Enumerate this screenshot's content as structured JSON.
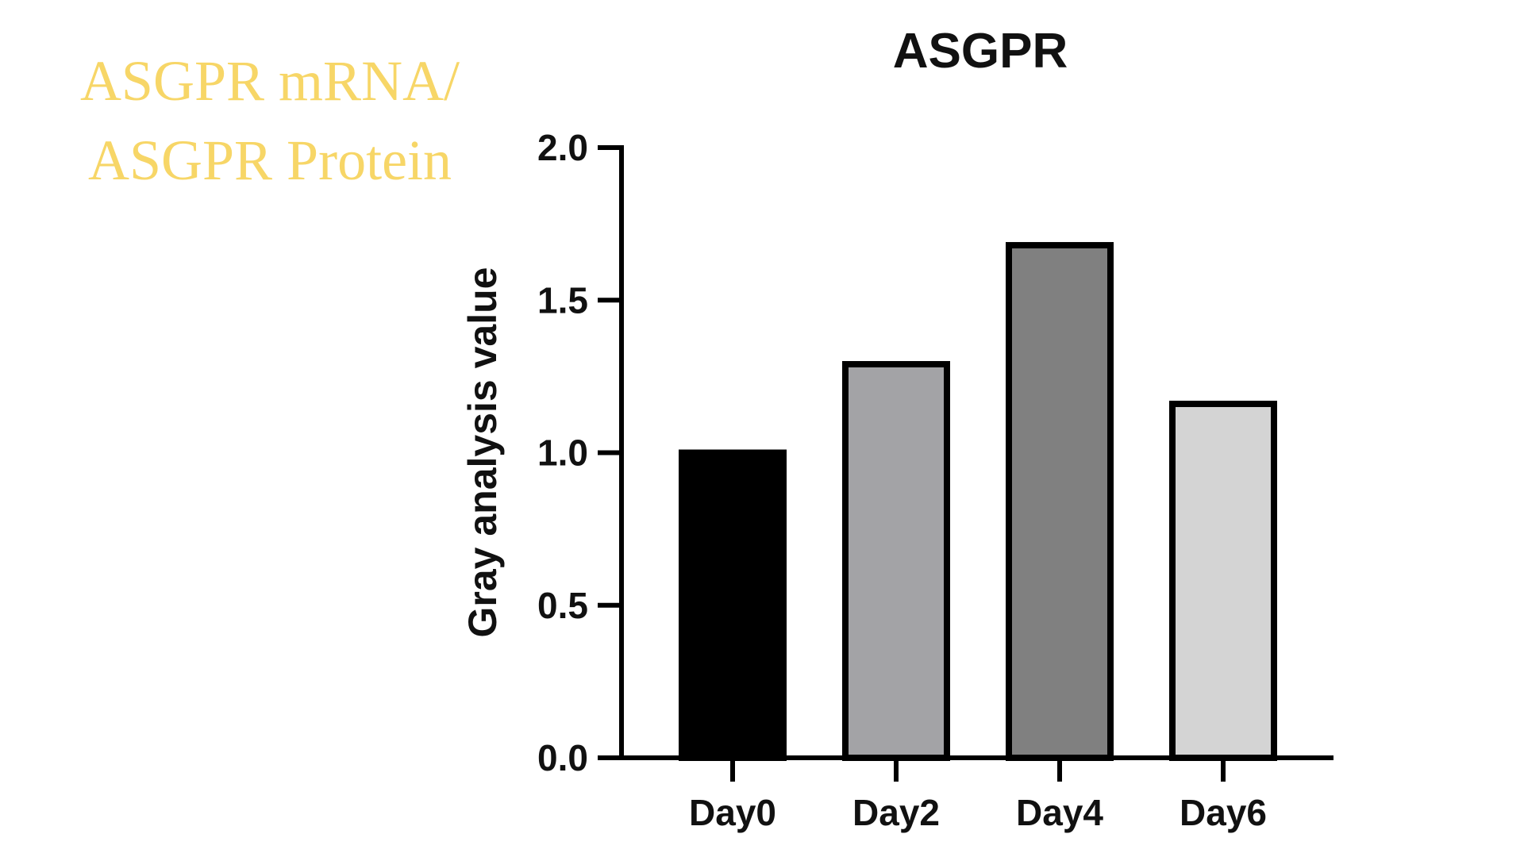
{
  "side_note": {
    "line1": "ASGPR mRNA/",
    "line2": "ASGPR Protein",
    "color": "#f7d667"
  },
  "chart_data": {
    "type": "bar",
    "title": "ASGPR",
    "xlabel": "",
    "ylabel": "Gray analysis value",
    "categories": [
      "Day0",
      "Day2",
      "Day4",
      "Day6"
    ],
    "values": [
      1.0,
      1.29,
      1.68,
      1.16
    ],
    "bar_colors": [
      "#000000",
      "#a3a3a6",
      "#808080",
      "#d4d4d4"
    ],
    "bar_outline": "#000000",
    "ylim": [
      0,
      2.0
    ],
    "yticks": [
      0.0,
      0.5,
      1.0,
      1.5,
      2.0
    ],
    "ytick_labels": [
      "0.0",
      "0.5",
      "1.0",
      "1.5",
      "2.0"
    ],
    "grid": false,
    "legend": "none"
  }
}
